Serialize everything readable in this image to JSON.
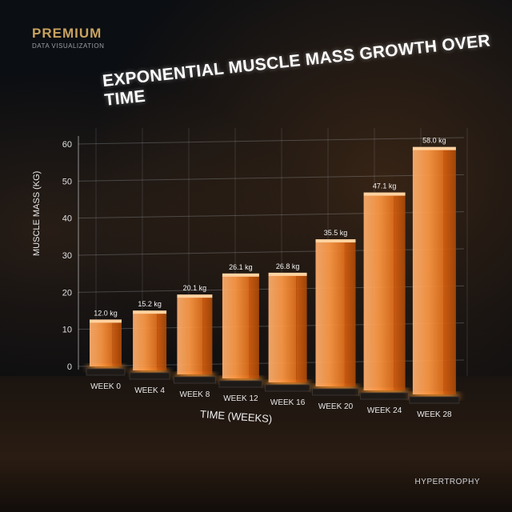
{
  "brand": {
    "title": "PREMIUM",
    "subtitle": "DATA VISUALIZATION"
  },
  "footer_tag": "HYPERTROPHY",
  "chart_data": {
    "type": "bar",
    "title": "EXPONENTIAL MUSCLE MASS GROWTH OVER TIME",
    "xlabel": "TIME (WEEKS)",
    "ylabel": "MUSCLE MASS (KG)",
    "ylim": [
      0,
      60
    ],
    "yticks": [
      0,
      10,
      20,
      30,
      40,
      50,
      60
    ],
    "grid": true,
    "categories": [
      "WEEK 0",
      "WEEK 4",
      "WEEK 8",
      "WEEK 12",
      "WEEK 16",
      "WEEK 20",
      "WEEK 24",
      "WEEK 28"
    ],
    "values": [
      12.0,
      15.2,
      20.1,
      26.1,
      26.8,
      35.5,
      47.1,
      58.0
    ],
    "data_labels": [
      "12.0 kg",
      "15.2 kg",
      "20.1 kg",
      "26.1 kg",
      "26.8 kg",
      "35.5 kg",
      "47.1 kg",
      "58.0 kg"
    ],
    "bar_color": "#ff8a2a"
  }
}
